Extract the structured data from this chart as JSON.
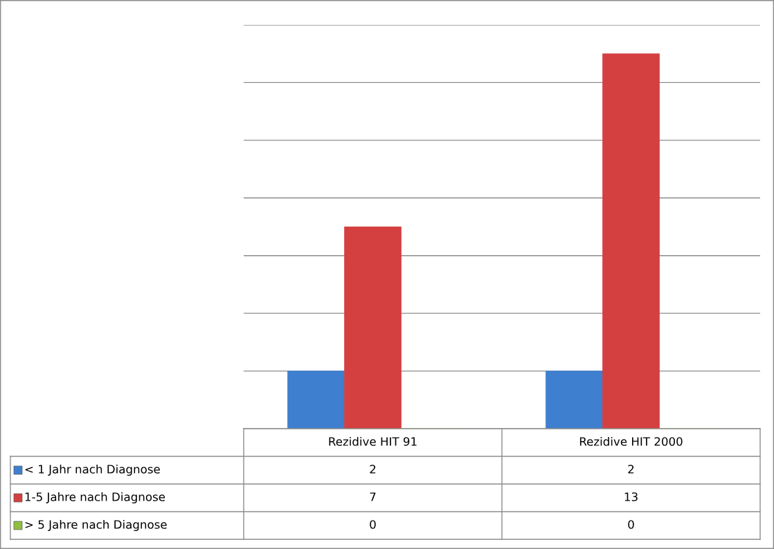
{
  "chart_data": {
    "type": "bar",
    "categories": [
      "Rezidive HIT 91",
      "Rezidive HIT 2000"
    ],
    "series": [
      {
        "name": "< 1 Jahr nach Diagnose",
        "color": "#3f7fcf",
        "values": [
          2,
          2
        ]
      },
      {
        "name": "1-5 Jahre nach Diagnose",
        "color": "#d44040",
        "values": [
          7,
          13
        ]
      },
      {
        "name": "> 5 Jahre nach Diagnose",
        "color": "#8fbf3f",
        "values": [
          0,
          0
        ]
      }
    ],
    "ylim": [
      0,
      14
    ],
    "yticks": [
      {
        "value": 0,
        "label": null
      },
      {
        "value": 2,
        "label": null
      },
      {
        "value": 4,
        "label": null
      },
      {
        "value": 6,
        "label": null
      },
      {
        "value": 8,
        "label": null
      },
      {
        "value": 10,
        "label": null
      },
      {
        "value": 12,
        "label": null
      },
      {
        "value": 14,
        "label": null
      }
    ],
    "grid": "y",
    "legend": "bottom",
    "data_labels": true,
    "tick_labels": false
  }
}
